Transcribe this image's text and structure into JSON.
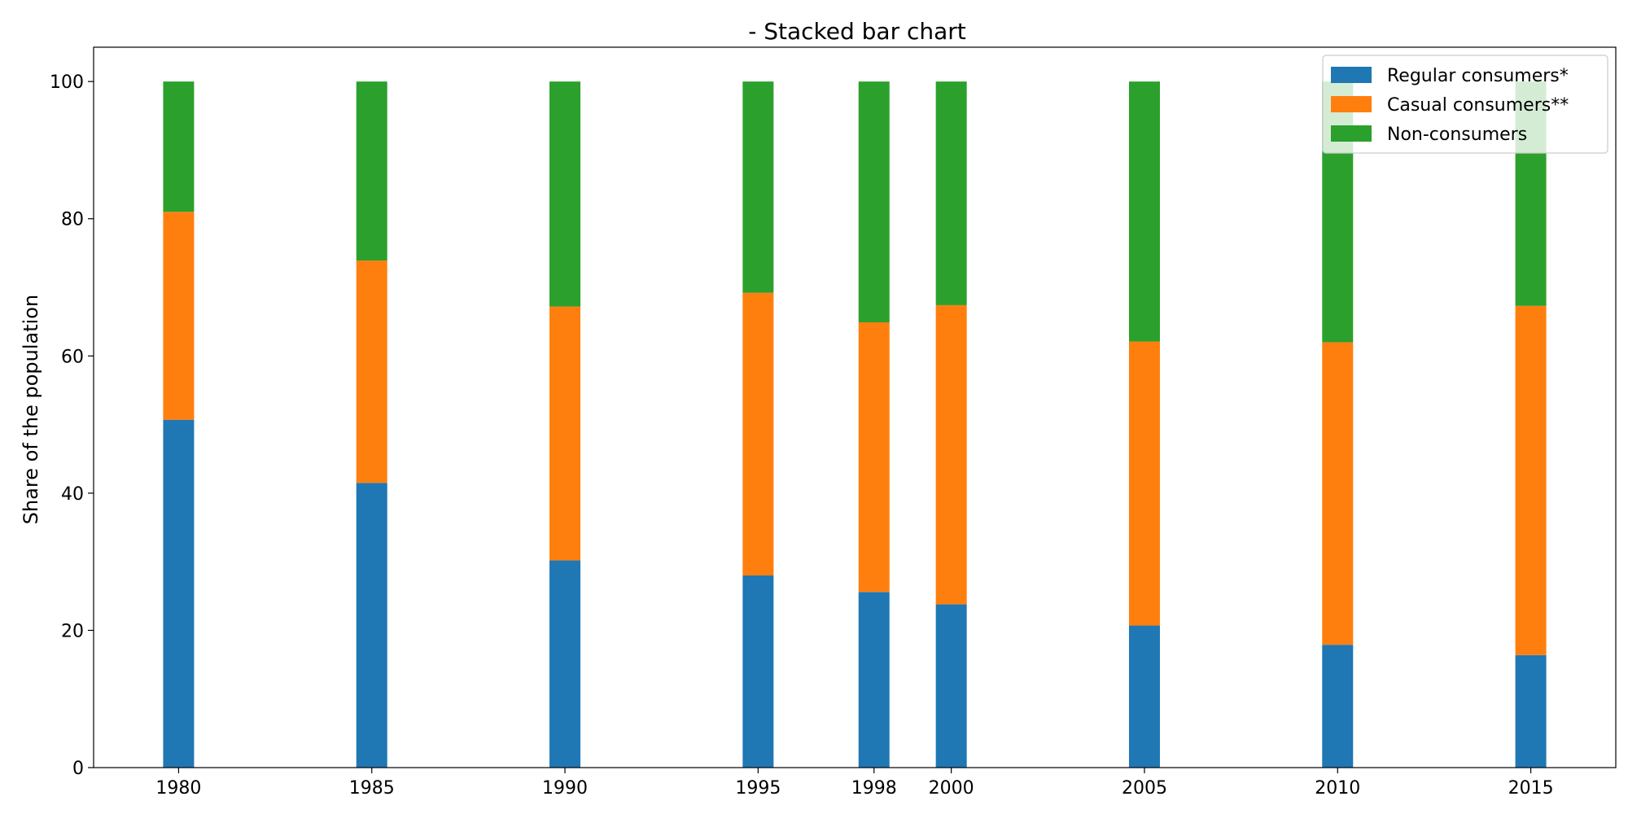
{
  "chart_data": {
    "type": "bar",
    "stacked": true,
    "title": "- Stacked bar chart",
    "xlabel": "",
    "ylabel": "Share of the population",
    "x": [
      1980,
      1985,
      1990,
      1995,
      1998,
      2000,
      2005,
      2010,
      2015
    ],
    "xlim": [
      1977.8,
      2017.2
    ],
    "ylim": [
      0,
      105
    ],
    "yticks": [
      0,
      20,
      40,
      60,
      80,
      100
    ],
    "grid": false,
    "legend_position": "top-right",
    "series": [
      {
        "name": "Regular consumers*",
        "color": "#1f77b4",
        "values": [
          50.7,
          41.5,
          30.2,
          28.0,
          25.6,
          23.8,
          20.7,
          17.9,
          16.4
        ]
      },
      {
        "name": "Casual consumers**",
        "color": "#ff7f0e",
        "values": [
          30.3,
          32.4,
          37.0,
          41.2,
          39.3,
          43.6,
          41.4,
          44.1,
          50.9
        ]
      },
      {
        "name": "Non-consumers",
        "color": "#2ca02c",
        "values": [
          19.0,
          26.1,
          32.8,
          30.8,
          35.1,
          32.6,
          37.9,
          38.0,
          32.7
        ]
      }
    ]
  }
}
